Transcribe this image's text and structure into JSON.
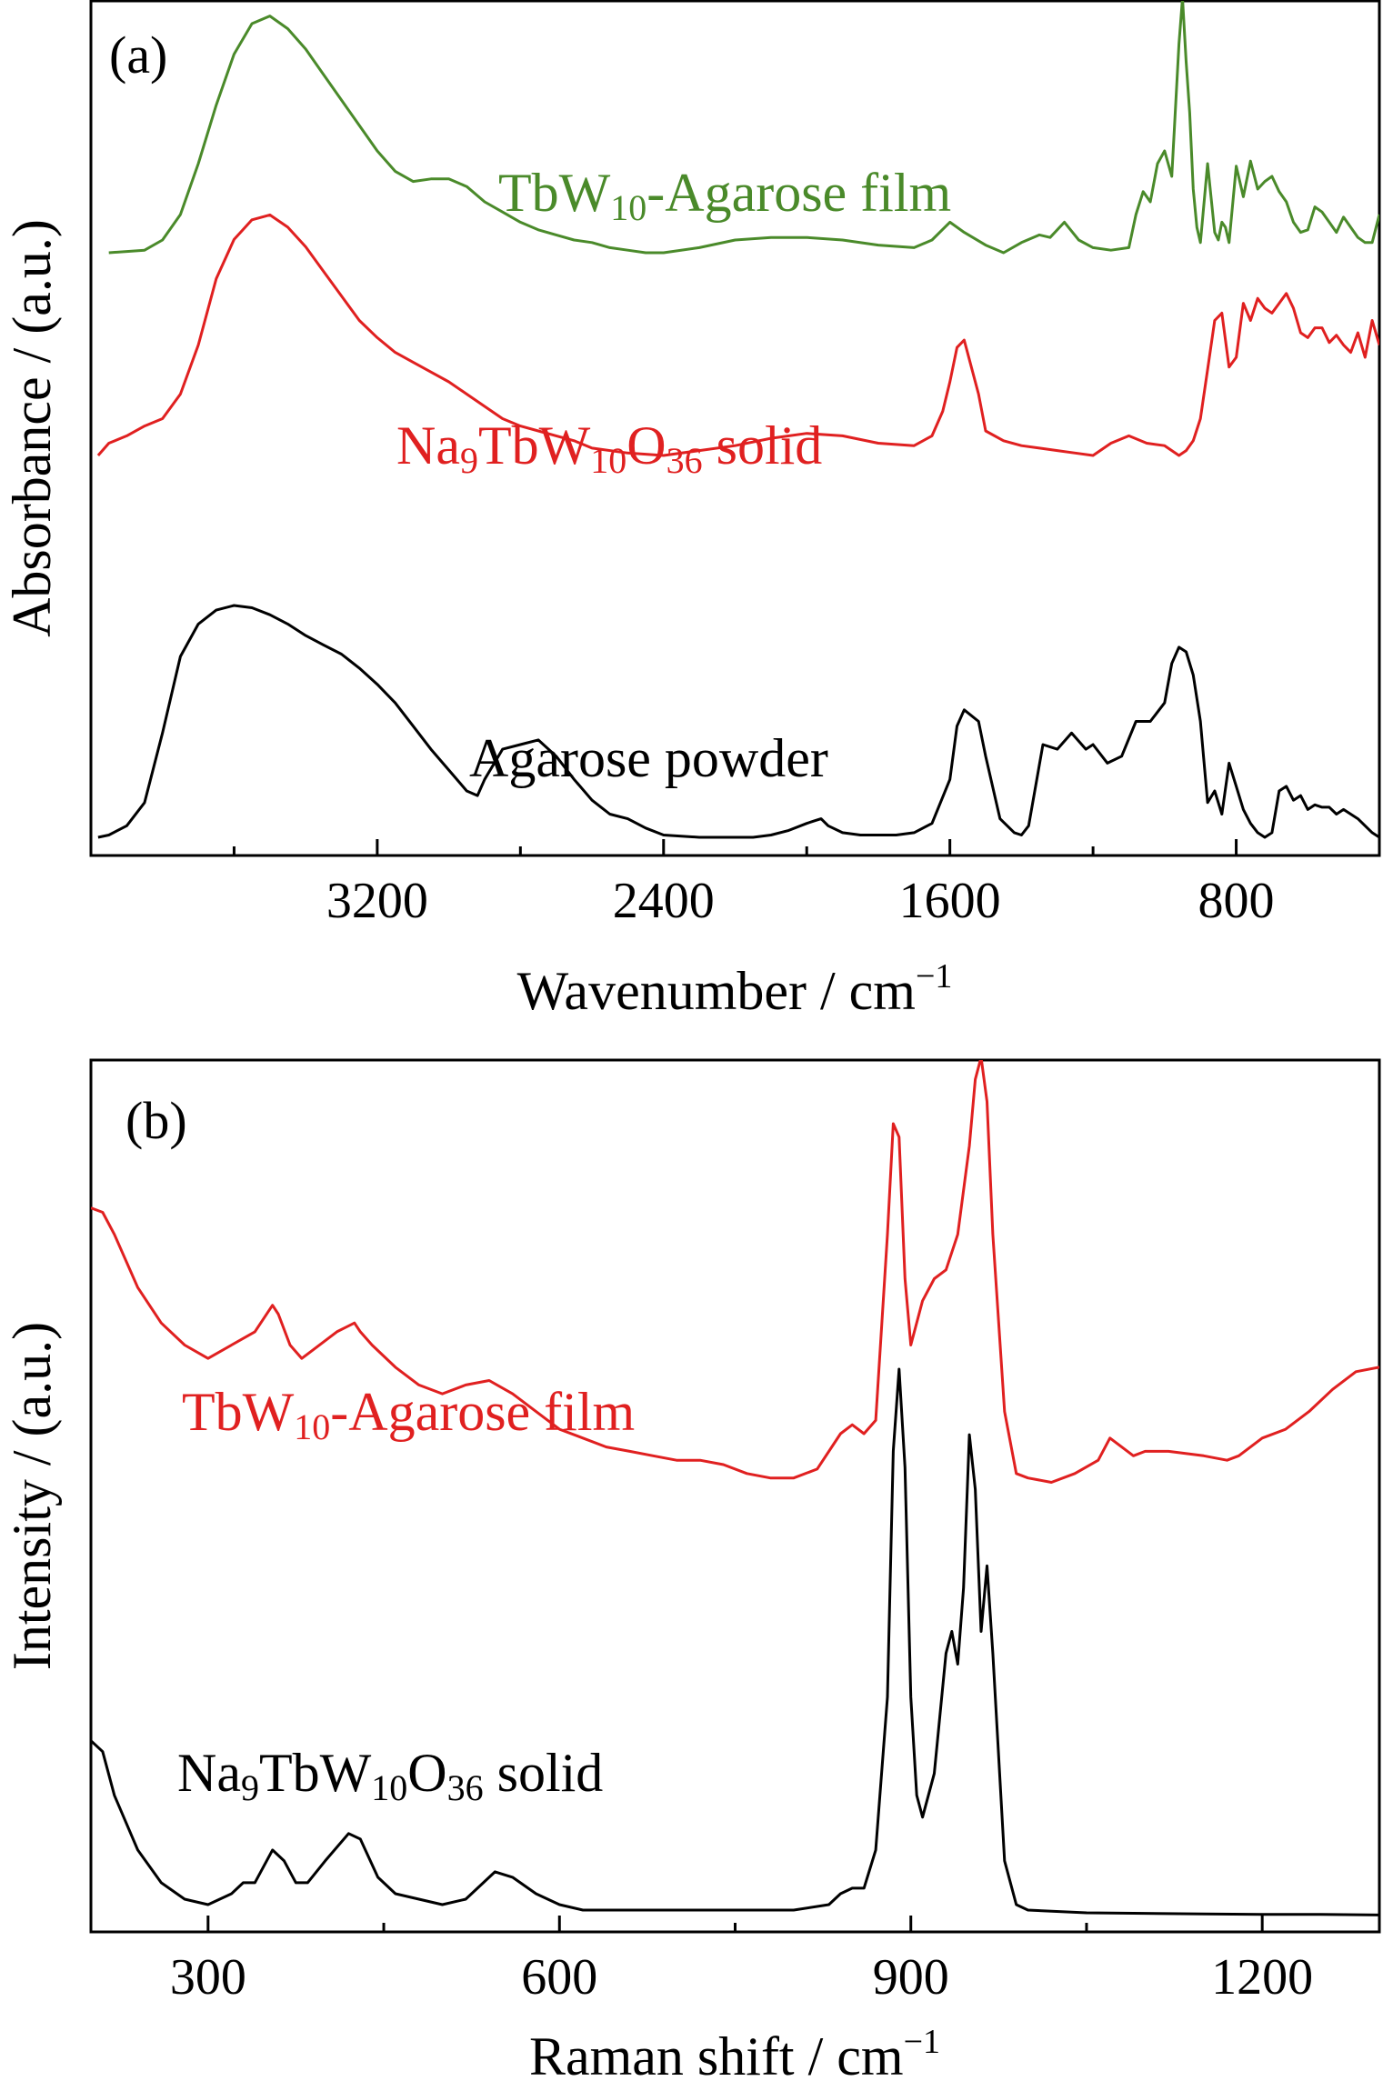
{
  "chart_data": [
    {
      "type": "line",
      "panel_label": "(a)",
      "xlabel": "Wavenumber / cm",
      "xlabel_sup": "−1",
      "ylabel": "Absorbance / (a.u.)",
      "xlim": [
        4000,
        400
      ],
      "x_reversed": true,
      "xticks": [
        3200,
        2400,
        1600,
        800
      ],
      "minor_xtick_step": 400,
      "y_ticks_shown": false,
      "grid": false,
      "series": [
        {
          "name_parts": [
            {
              "t": "TbW"
            },
            {
              "t": "10",
              "sub": true
            },
            {
              "t": "-Agarose film"
            }
          ],
          "color": "#4a8a2a",
          "x": [
            3950,
            3850,
            3800,
            3750,
            3700,
            3650,
            3600,
            3550,
            3500,
            3450,
            3400,
            3350,
            3300,
            3250,
            3200,
            3150,
            3100,
            3050,
            3000,
            2950,
            2900,
            2850,
            2800,
            2750,
            2700,
            2650,
            2600,
            2550,
            2500,
            2450,
            2400,
            2300,
            2200,
            2100,
            2000,
            1900,
            1800,
            1700,
            1650,
            1600,
            1560,
            1500,
            1450,
            1400,
            1350,
            1320,
            1280,
            1240,
            1200,
            1150,
            1100,
            1080,
            1060,
            1040,
            1020,
            1000,
            980,
            960,
            950,
            940,
            930,
            920,
            910,
            900,
            880,
            860,
            850,
            840,
            830,
            820,
            800,
            780,
            760,
            740,
            720,
            700,
            680,
            660,
            640,
            620,
            600,
            580,
            560,
            540,
            520,
            500,
            480,
            460,
            440,
            420,
            400
          ],
          "y": [
            0.0,
            0.01,
            0.05,
            0.15,
            0.35,
            0.58,
            0.78,
            0.9,
            0.93,
            0.88,
            0.8,
            0.7,
            0.6,
            0.5,
            0.4,
            0.32,
            0.28,
            0.29,
            0.29,
            0.26,
            0.2,
            0.16,
            0.12,
            0.09,
            0.07,
            0.05,
            0.04,
            0.02,
            0.01,
            0.0,
            0.0,
            0.02,
            0.05,
            0.06,
            0.06,
            0.05,
            0.03,
            0.02,
            0.05,
            0.12,
            0.08,
            0.03,
            0.0,
            0.04,
            0.07,
            0.06,
            0.12,
            0.05,
            0.02,
            0.01,
            0.02,
            0.15,
            0.24,
            0.2,
            0.35,
            0.4,
            0.3,
            0.82,
            1.0,
            0.75,
            0.55,
            0.25,
            0.1,
            0.04,
            0.35,
            0.08,
            0.05,
            0.12,
            0.1,
            0.04,
            0.34,
            0.22,
            0.36,
            0.25,
            0.28,
            0.3,
            0.24,
            0.2,
            0.12,
            0.08,
            0.09,
            0.18,
            0.16,
            0.12,
            0.08,
            0.14,
            0.1,
            0.06,
            0.04,
            0.04,
            0.15
          ]
        },
        {
          "name_parts": [
            {
              "t": "Na"
            },
            {
              "t": "9",
              "sub": true
            },
            {
              "t": "TbW"
            },
            {
              "t": "10",
              "sub": true
            },
            {
              "t": "O"
            },
            {
              "t": "36",
              "sub": true
            },
            {
              "t": " solid"
            }
          ],
          "color": "#e02020",
          "x": [
            3980,
            3950,
            3900,
            3850,
            3800,
            3750,
            3700,
            3650,
            3600,
            3550,
            3500,
            3450,
            3400,
            3350,
            3300,
            3250,
            3200,
            3150,
            3100,
            3050,
            3000,
            2950,
            2900,
            2850,
            2800,
            2750,
            2700,
            2650,
            2600,
            2500,
            2400,
            2300,
            2200,
            2100,
            2000,
            1900,
            1800,
            1700,
            1650,
            1620,
            1600,
            1580,
            1560,
            1520,
            1500,
            1450,
            1400,
            1350,
            1300,
            1250,
            1200,
            1150,
            1100,
            1050,
            1000,
            980,
            960,
            940,
            920,
            900,
            880,
            860,
            840,
            820,
            800,
            780,
            760,
            740,
            720,
            700,
            680,
            660,
            640,
            620,
            600,
            580,
            560,
            540,
            520,
            500,
            480,
            460,
            440,
            420,
            400
          ],
          "y": [
            0.0,
            0.05,
            0.08,
            0.12,
            0.15,
            0.25,
            0.45,
            0.72,
            0.88,
            0.96,
            0.98,
            0.93,
            0.85,
            0.75,
            0.65,
            0.55,
            0.48,
            0.42,
            0.38,
            0.34,
            0.3,
            0.25,
            0.2,
            0.15,
            0.12,
            0.1,
            0.08,
            0.06,
            0.03,
            0.01,
            0.0,
            0.02,
            0.04,
            0.07,
            0.09,
            0.08,
            0.05,
            0.04,
            0.08,
            0.18,
            0.3,
            0.44,
            0.47,
            0.25,
            0.1,
            0.06,
            0.04,
            0.03,
            0.02,
            0.01,
            0.0,
            0.05,
            0.08,
            0.05,
            0.04,
            0.02,
            0.0,
            0.02,
            0.06,
            0.15,
            0.35,
            0.55,
            0.58,
            0.36,
            0.4,
            0.62,
            0.55,
            0.64,
            0.6,
            0.58,
            0.62,
            0.66,
            0.6,
            0.5,
            0.48,
            0.52,
            0.52,
            0.46,
            0.49,
            0.45,
            0.42,
            0.5,
            0.4,
            0.55,
            0.45
          ]
        },
        {
          "name_parts": [
            {
              "t": "Agarose powder"
            }
          ],
          "color": "#000000",
          "x": [
            3980,
            3950,
            3900,
            3850,
            3800,
            3750,
            3700,
            3650,
            3600,
            3550,
            3500,
            3450,
            3400,
            3350,
            3300,
            3250,
            3200,
            3150,
            3100,
            3050,
            3000,
            2950,
            2920,
            2900,
            2850,
            2800,
            2750,
            2700,
            2650,
            2600,
            2550,
            2500,
            2450,
            2400,
            2300,
            2200,
            2150,
            2100,
            2050,
            2000,
            1980,
            1960,
            1940,
            1900,
            1850,
            1800,
            1750,
            1700,
            1650,
            1600,
            1580,
            1560,
            1520,
            1500,
            1460,
            1420,
            1400,
            1380,
            1340,
            1300,
            1260,
            1220,
            1200,
            1160,
            1120,
            1080,
            1040,
            1000,
            980,
            960,
            940,
            920,
            900,
            880,
            860,
            840,
            820,
            800,
            780,
            760,
            740,
            720,
            700,
            680,
            660,
            640,
            620,
            600,
            580,
            560,
            540,
            520,
            500,
            480,
            460,
            440,
            420,
            400
          ],
          "y": [
            0.0,
            0.01,
            0.05,
            0.15,
            0.45,
            0.78,
            0.92,
            0.98,
            1.0,
            0.99,
            0.96,
            0.92,
            0.87,
            0.83,
            0.79,
            0.73,
            0.66,
            0.58,
            0.48,
            0.38,
            0.29,
            0.2,
            0.18,
            0.25,
            0.38,
            0.4,
            0.42,
            0.35,
            0.25,
            0.16,
            0.1,
            0.08,
            0.04,
            0.01,
            0.0,
            0.0,
            0.0,
            0.01,
            0.03,
            0.06,
            0.07,
            0.08,
            0.05,
            0.02,
            0.01,
            0.01,
            0.01,
            0.02,
            0.06,
            0.25,
            0.48,
            0.55,
            0.5,
            0.35,
            0.08,
            0.02,
            0.01,
            0.05,
            0.4,
            0.38,
            0.45,
            0.38,
            0.4,
            0.32,
            0.35,
            0.5,
            0.5,
            0.58,
            0.75,
            0.82,
            0.8,
            0.7,
            0.5,
            0.15,
            0.2,
            0.1,
            0.32,
            0.22,
            0.12,
            0.06,
            0.02,
            0.0,
            0.02,
            0.2,
            0.22,
            0.16,
            0.18,
            0.12,
            0.14,
            0.13,
            0.13,
            0.1,
            0.12,
            0.1,
            0.08,
            0.05,
            0.02,
            0.0
          ]
        }
      ]
    },
    {
      "type": "line",
      "panel_label": "(b)",
      "xlabel": "Raman shift / cm",
      "xlabel_sup": "−1",
      "ylabel": "Intensity / (a.u.)",
      "xlim": [
        200,
        1300
      ],
      "x_reversed": false,
      "xticks": [
        300,
        600,
        900,
        1200
      ],
      "minor_xtick_step": 150,
      "y_ticks_shown": false,
      "grid": false,
      "series": [
        {
          "name_parts": [
            {
              "t": "TbW"
            },
            {
              "t": "10",
              "sub": true
            },
            {
              "t": "-Agarose film"
            }
          ],
          "color": "#e02020",
          "x": [
            200,
            210,
            220,
            240,
            260,
            280,
            300,
            320,
            340,
            355,
            360,
            370,
            380,
            390,
            410,
            425,
            430,
            440,
            460,
            480,
            500,
            520,
            540,
            560,
            580,
            600,
            620,
            640,
            660,
            680,
            700,
            720,
            740,
            760,
            780,
            800,
            820,
            840,
            850,
            860,
            870,
            880,
            885,
            890,
            895,
            900,
            910,
            920,
            930,
            940,
            950,
            955,
            960,
            965,
            970,
            980,
            990,
            1000,
            1020,
            1040,
            1060,
            1070,
            1080,
            1090,
            1100,
            1120,
            1150,
            1170,
            1180,
            1200,
            1220,
            1240,
            1260,
            1280,
            1300
          ],
          "y": [
            0.66,
            0.65,
            0.6,
            0.48,
            0.4,
            0.35,
            0.32,
            0.35,
            0.38,
            0.44,
            0.42,
            0.35,
            0.32,
            0.34,
            0.38,
            0.4,
            0.38,
            0.35,
            0.3,
            0.26,
            0.24,
            0.26,
            0.27,
            0.24,
            0.2,
            0.16,
            0.14,
            0.12,
            0.11,
            0.1,
            0.09,
            0.09,
            0.08,
            0.06,
            0.05,
            0.05,
            0.07,
            0.15,
            0.17,
            0.15,
            0.18,
            0.6,
            0.85,
            0.82,
            0.5,
            0.35,
            0.45,
            0.5,
            0.52,
            0.6,
            0.8,
            0.95,
            1.0,
            0.9,
            0.6,
            0.2,
            0.06,
            0.05,
            0.04,
            0.06,
            0.09,
            0.14,
            0.12,
            0.1,
            0.11,
            0.11,
            0.1,
            0.09,
            0.1,
            0.14,
            0.16,
            0.2,
            0.25,
            0.29,
            0.3
          ]
        },
        {
          "name_parts": [
            {
              "t": "Na"
            },
            {
              "t": "9",
              "sub": true
            },
            {
              "t": "TbW"
            },
            {
              "t": "10",
              "sub": true
            },
            {
              "t": "O"
            },
            {
              "t": "36",
              "sub": true
            },
            {
              "t": " solid"
            }
          ],
          "color": "#000000",
          "x": [
            200,
            210,
            220,
            240,
            260,
            280,
            300,
            320,
            330,
            340,
            355,
            365,
            375,
            385,
            400,
            420,
            430,
            445,
            460,
            480,
            500,
            520,
            545,
            560,
            580,
            600,
            620,
            650,
            700,
            750,
            800,
            830,
            840,
            850,
            860,
            870,
            880,
            885,
            890,
            895,
            900,
            905,
            910,
            920,
            930,
            935,
            940,
            945,
            950,
            955,
            960,
            965,
            970,
            980,
            990,
            1000,
            1050,
            1100,
            1150,
            1200,
            1250,
            1300
          ],
          "y": [
            0.32,
            0.3,
            0.22,
            0.12,
            0.06,
            0.03,
            0.02,
            0.04,
            0.06,
            0.06,
            0.12,
            0.1,
            0.06,
            0.06,
            0.1,
            0.15,
            0.14,
            0.07,
            0.04,
            0.03,
            0.02,
            0.03,
            0.08,
            0.07,
            0.04,
            0.02,
            0.01,
            0.01,
            0.01,
            0.01,
            0.01,
            0.02,
            0.04,
            0.05,
            0.05,
            0.12,
            0.4,
            0.85,
            1.0,
            0.82,
            0.4,
            0.22,
            0.18,
            0.26,
            0.48,
            0.52,
            0.46,
            0.6,
            0.88,
            0.78,
            0.52,
            0.64,
            0.48,
            0.1,
            0.02,
            0.01,
            0.005,
            0.004,
            0.003,
            0.002,
            0.002,
            0.001
          ]
        }
      ]
    }
  ]
}
